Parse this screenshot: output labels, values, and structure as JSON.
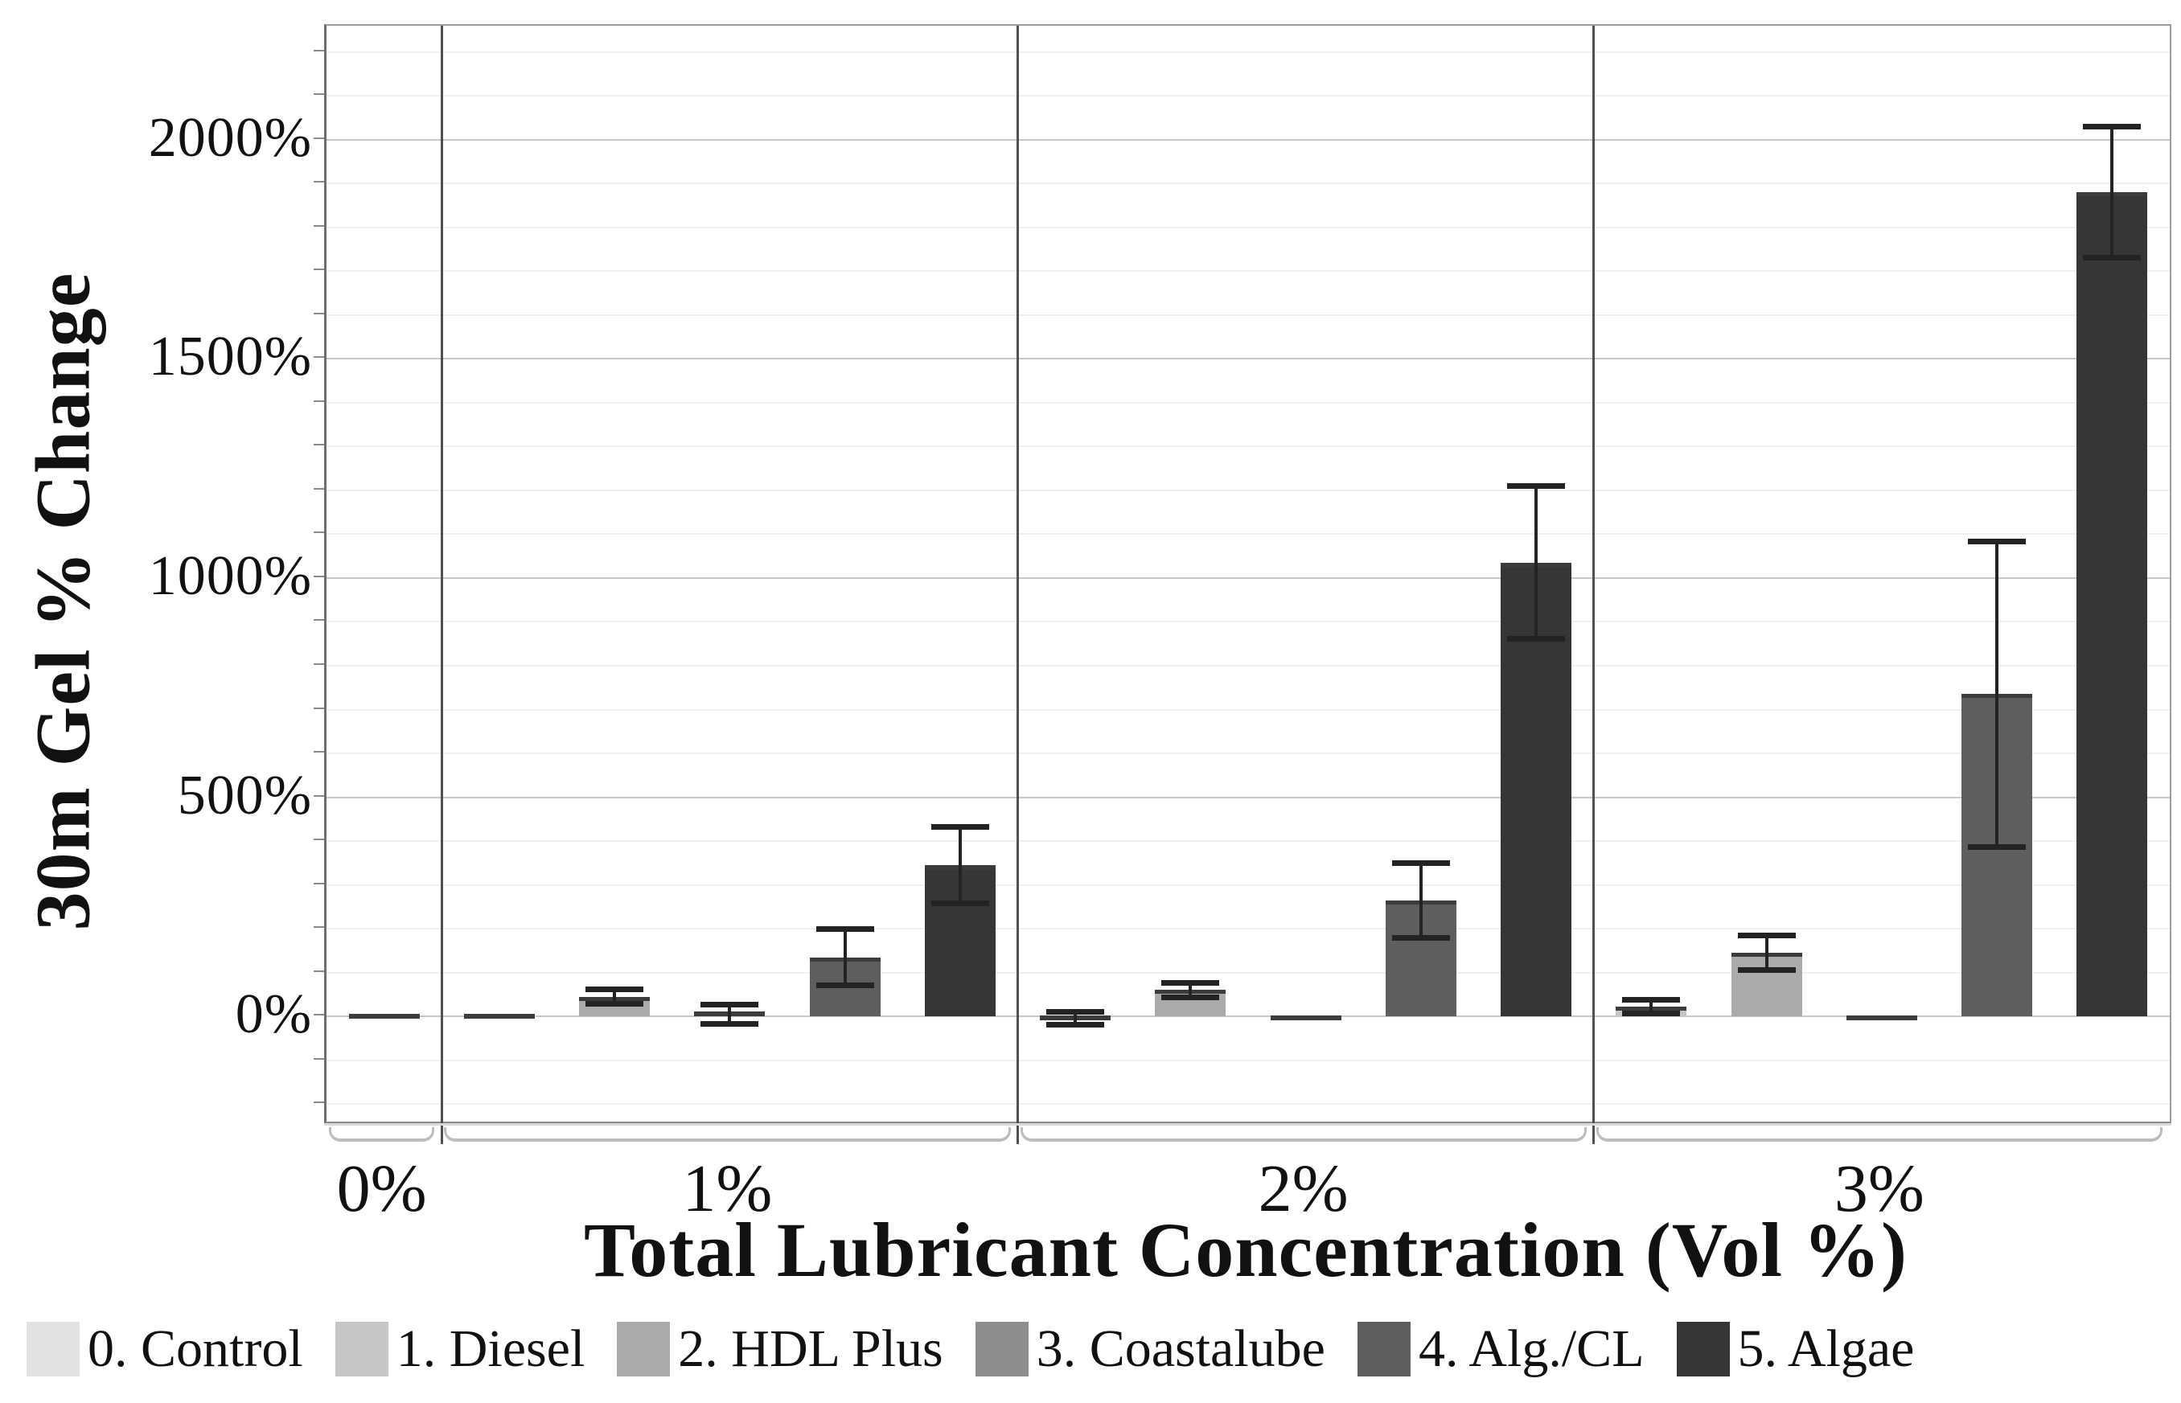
{
  "chart_data": {
    "type": "bar",
    "title": "",
    "xlabel": "Total Lubricant Concentration (Vol %)",
    "ylabel": "30m Gel % Change",
    "categories": [
      "0%",
      "1%",
      "2%",
      "3%"
    ],
    "series": [
      {
        "name": "0. Control",
        "color": "#e2e2e2",
        "values": [
          0,
          null,
          null,
          null
        ],
        "errors": [
          null,
          null,
          null,
          null
        ]
      },
      {
        "name": "1. Diesel",
        "color": "#c6c6c6",
        "values": [
          null,
          0,
          -4,
          22
        ],
        "errors": [
          null,
          null,
          16,
          16
        ]
      },
      {
        "name": "2. HDL Plus",
        "color": "#aaaaaa",
        "values": [
          null,
          45,
          60,
          145
        ],
        "errors": [
          null,
          17,
          18,
          40
        ]
      },
      {
        "name": "3. Coastalube",
        "color": "#8d8d8d",
        "values": [
          null,
          5,
          -4,
          -3
        ],
        "errors": [
          null,
          23,
          null,
          null
        ]
      },
      {
        "name": "4. Alg./CL",
        "color": "#5e5e5e",
        "values": [
          null,
          135,
          265,
          735
        ],
        "errors": [
          null,
          65,
          86,
          350
        ]
      },
      {
        "name": "5. Algae",
        "color": "#363636",
        "values": [
          null,
          345,
          1035,
          1880
        ],
        "errors": [
          null,
          88,
          175,
          150
        ]
      }
    ],
    "y_axis": {
      "tick_labels": [
        "0%",
        "500%",
        "1000%",
        "1500%",
        "2000%"
      ],
      "tick_values": [
        0,
        500,
        1000,
        1500,
        2000
      ],
      "minor_step": 100,
      "ylim": [
        -240,
        2260
      ]
    },
    "grid": true,
    "legend_position": "bottom"
  }
}
